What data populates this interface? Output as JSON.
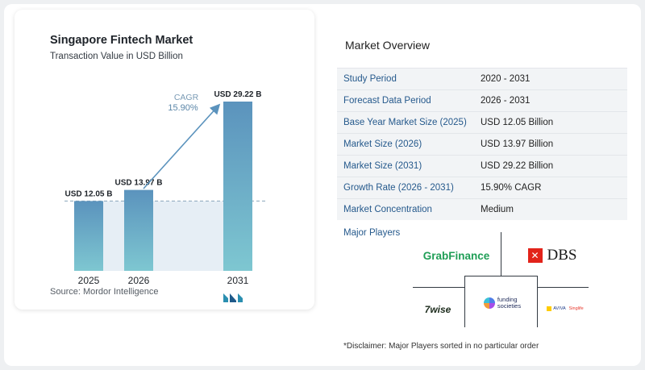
{
  "chart_data": {
    "type": "bar",
    "title": "Singapore Fintech Market",
    "subtitle": "Transaction Value in USD Billion",
    "categories": [
      "2025",
      "2026",
      "2031"
    ],
    "values": [
      12.05,
      13.97,
      29.22
    ],
    "data_labels": [
      "USD 12.05 B",
      "USD 13.97 B",
      "USD 29.22 B"
    ],
    "annotation": {
      "label": "CAGR",
      "value": "15.90%"
    },
    "source": "Source:   Mordor Intelligence",
    "ylim": [
      0,
      31
    ],
    "grid": false,
    "colors": {
      "bar_top": "#5b93bd",
      "bar_bottom": "#7ec7d1",
      "band": "#e6eef5",
      "arrow": "#5b93bd"
    }
  },
  "overview": {
    "title": "Market Overview",
    "rows": [
      {
        "key": "Study Period",
        "value": "2020 - 2031"
      },
      {
        "key": "Forecast Data Period",
        "value": "2026 - 2031"
      },
      {
        "key": "Base Year Market Size (2025)",
        "value": "USD 12.05 Billion"
      },
      {
        "key": "Market Size (2026)",
        "value": "USD 13.97 Billion"
      },
      {
        "key": "Market Size (2031)",
        "value": "USD 29.22 Billion"
      },
      {
        "key": "Growth Rate (2026 - 2031)",
        "value": "15.90% CAGR"
      },
      {
        "key": "Market Concentration",
        "value": "Medium"
      }
    ]
  },
  "players": {
    "title": "Major Players",
    "grab": "GrabFinance",
    "dbs": "DBS",
    "wise": "7wise",
    "funding_line1": "funding",
    "funding_line2": "societies",
    "aviva": "AVIVA",
    "singlife": "Singlife"
  },
  "disclaimer": "*Disclaimer: Major Players sorted in no particular order"
}
